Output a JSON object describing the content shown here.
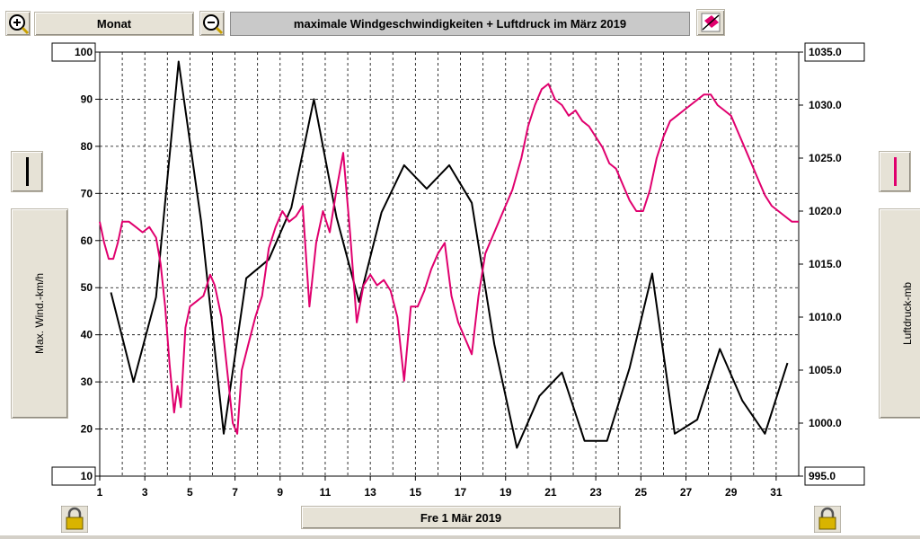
{
  "toolbar": {
    "zoom_in_icon": "zoom-in-icon",
    "period_label": "Monat",
    "zoom_out_icon": "zoom-out-icon",
    "title": "maximale Windgeschwindigkeiten + Luftdruck im März 2019",
    "tool_icon": "eraser-icon"
  },
  "left_panel": {
    "axis_label": "Max. Wind.-km/h",
    "legend_color": "#000000"
  },
  "right_panel": {
    "axis_label": "Luftdruck-mb",
    "legend_color": "#e0006e"
  },
  "footer": {
    "date_label": "Fre 1 Mär 2019",
    "lock_icon": "lock-icon"
  },
  "chart_data": {
    "type": "line",
    "title": "maximale Windgeschwindigkeiten + Luftdruck im März 2019",
    "x_ticks": [
      "1",
      "3",
      "5",
      "7",
      "9",
      "11",
      "13",
      "15",
      "17",
      "19",
      "21",
      "23",
      "25",
      "27",
      "29",
      "31"
    ],
    "xlim": [
      1,
      32
    ],
    "y_left": {
      "label": "Max. Wind.-km/h",
      "lim": [
        10,
        100
      ],
      "ticks": [
        "10",
        "20",
        "30",
        "40",
        "50",
        "60",
        "70",
        "80",
        "90",
        "100"
      ]
    },
    "y_right": {
      "label": "Luftdruck-mb",
      "lim": [
        995.0,
        1035.0
      ],
      "ticks": [
        "995.0",
        "1000.0",
        "1005.0",
        "1010.0",
        "1015.0",
        "1020.0",
        "1025.0",
        "1030.0",
        "1035.0"
      ]
    },
    "grid": true,
    "series": [
      {
        "axis": "left",
        "color": "#000000",
        "x": [
          1.5,
          2.5,
          3.5,
          4.5,
          5.5,
          6.5,
          7.5,
          8.5,
          9.5,
          10.5,
          11.5,
          12.5,
          13.5,
          14.5,
          15.5,
          16.5,
          17.5,
          18.5,
          19.5,
          20.5,
          21.5,
          22.5,
          23.5,
          24.5,
          25.5,
          26.5,
          27.5,
          28.5,
          29.5,
          30.5,
          31.5
        ],
        "y": [
          49,
          30,
          48,
          98,
          64,
          19,
          52,
          56,
          67,
          90,
          65,
          47,
          66,
          76,
          71,
          76,
          68,
          38,
          16,
          27,
          32,
          17.5,
          17.5,
          33,
          53,
          19,
          22,
          37,
          26,
          19,
          34
        ]
      },
      {
        "axis": "right",
        "color": "#e0006e",
        "x": [
          1.0,
          1.2,
          1.4,
          1.6,
          1.8,
          2.0,
          2.3,
          2.6,
          2.9,
          3.2,
          3.5,
          3.7,
          3.9,
          4.1,
          4.3,
          4.45,
          4.6,
          4.8,
          5.0,
          5.3,
          5.6,
          5.9,
          6.1,
          6.4,
          6.7,
          6.9,
          7.1,
          7.3,
          7.6,
          7.9,
          8.2,
          8.5,
          8.8,
          9.1,
          9.4,
          9.7,
          10.0,
          10.3,
          10.6,
          10.9,
          11.2,
          11.5,
          11.8,
          12.1,
          12.4,
          12.7,
          13.0,
          13.3,
          13.6,
          13.9,
          14.2,
          14.5,
          14.8,
          15.1,
          15.4,
          15.7,
          16.0,
          16.3,
          16.6,
          16.9,
          17.2,
          17.5,
          17.8,
          18.1,
          18.5,
          18.9,
          19.3,
          19.7,
          20.0,
          20.3,
          20.6,
          20.9,
          21.2,
          21.5,
          21.8,
          22.1,
          22.4,
          22.7,
          23.0,
          23.3,
          23.6,
          23.9,
          24.2,
          24.5,
          24.8,
          25.1,
          25.4,
          25.7,
          26.0,
          26.3,
          26.6,
          26.9,
          27.2,
          27.5,
          27.8,
          28.1,
          28.4,
          28.7,
          29.0,
          29.3,
          29.6,
          29.9,
          30.2,
          30.5,
          30.8,
          31.1,
          31.4,
          31.7,
          32.0
        ],
        "y": [
          1019.0,
          1017.0,
          1015.5,
          1015.5,
          1017.0,
          1019.0,
          1019.0,
          1018.5,
          1018.0,
          1018.5,
          1017.5,
          1015.0,
          1011.0,
          1005.5,
          1001.0,
          1003.5,
          1001.5,
          1009.0,
          1011.0,
          1011.5,
          1012.0,
          1014.0,
          1013.0,
          1010.0,
          1004.0,
          1000.0,
          999.0,
          1005.0,
          1007.5,
          1010.0,
          1012.0,
          1016.5,
          1018.5,
          1020.0,
          1019.0,
          1019.5,
          1020.5,
          1011.0,
          1017.0,
          1020.0,
          1018.0,
          1022.0,
          1025.5,
          1018.0,
          1009.5,
          1013.0,
          1014.0,
          1013.0,
          1013.5,
          1012.5,
          1010.0,
          1004.0,
          1011.0,
          1011.0,
          1012.5,
          1014.5,
          1016.0,
          1017.0,
          1012.0,
          1009.5,
          1008.0,
          1006.5,
          1012.0,
          1016.0,
          1018.0,
          1020.0,
          1022.0,
          1025.0,
          1028.0,
          1030.0,
          1031.5,
          1032.0,
          1030.5,
          1030.0,
          1029.0,
          1029.5,
          1028.5,
          1028.0,
          1027.0,
          1026.0,
          1024.5,
          1024.0,
          1022.5,
          1021.0,
          1020.0,
          1020.0,
          1022.0,
          1025.0,
          1027.0,
          1028.5,
          1029.0,
          1029.5,
          1030.0,
          1030.5,
          1031.0,
          1031.0,
          1030.0,
          1029.5,
          1029.0,
          1027.5,
          1026.0,
          1024.5,
          1023.0,
          1021.5,
          1020.5,
          1020.0,
          1019.5,
          1019.0,
          1019.0
        ]
      }
    ]
  }
}
